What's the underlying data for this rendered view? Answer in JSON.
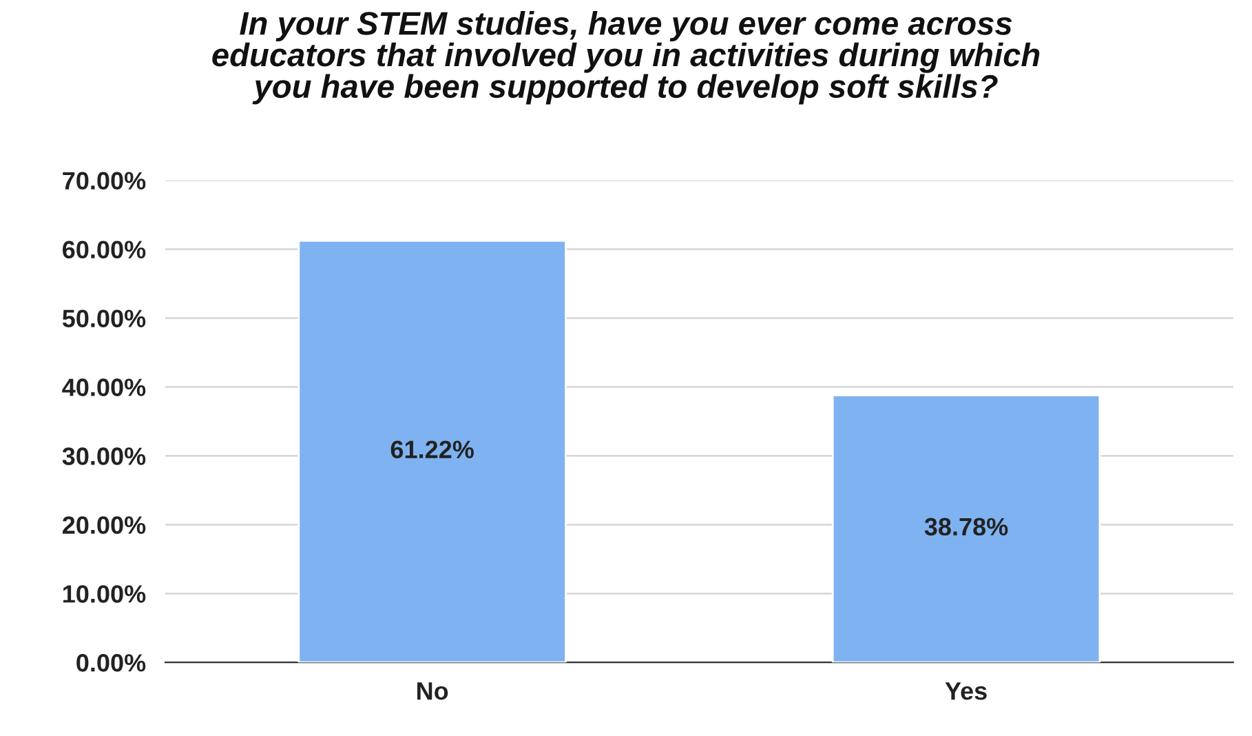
{
  "chart_data": {
    "type": "bar",
    "title": "In your STEM studies, have you ever come across\neducators that involved you in activities during which\nyou have been supported to develop soft skills?",
    "categories": [
      "No",
      "Yes"
    ],
    "values": [
      61.22,
      38.78
    ],
    "value_labels": [
      "61.22%",
      "38.78%"
    ],
    "color": "#7fb2f0",
    "ylim": [
      0,
      70
    ],
    "yticks": [
      {
        "value": 0,
        "label": "0.00%"
      },
      {
        "value": 10,
        "label": "10.00%"
      },
      {
        "value": 20,
        "label": "20.00%"
      },
      {
        "value": 30,
        "label": "30.00%"
      },
      {
        "value": 40,
        "label": "40.00%"
      },
      {
        "value": 50,
        "label": "50.00%"
      },
      {
        "value": 60,
        "label": "60.00%"
      },
      {
        "value": 70,
        "label": "70.00%"
      }
    ],
    "grid": "y",
    "legend": false
  }
}
